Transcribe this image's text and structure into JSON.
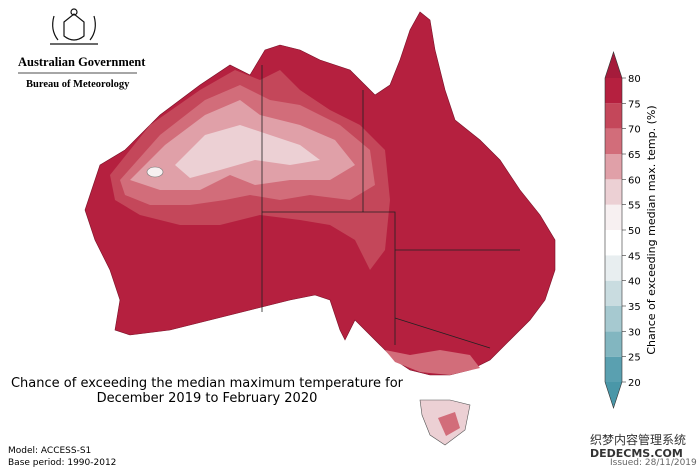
{
  "header": {
    "government": "Australian Government",
    "agency": "Bureau of Meteorology"
  },
  "title": {
    "line1": "Chance of exceeding the median maximum temperature for",
    "line2": "December 2019 to February 2020"
  },
  "legend": {
    "label": "Chance of exceeding median max. temp. (%)",
    "ticks": [
      20,
      25,
      30,
      35,
      40,
      45,
      50,
      55,
      60,
      65,
      70,
      75,
      80
    ],
    "colors": [
      "#5aa0b0",
      "#82b6c0",
      "#a6c9d0",
      "#c9dce0",
      "#e8eef0",
      "#ffffff",
      "#f7f0f1",
      "#ecd0d4",
      "#e0a0a8",
      "#d26d7a",
      "#c4475a",
      "#b5203f"
    ],
    "low_color": "#4a97a8",
    "high_color": "#a51b3b"
  },
  "footer": {
    "model": "Model: ACCESS-S1",
    "base_period": "Base period: 1990-2012",
    "issued": "Issued: 28/11/2019",
    "watermark": "织梦内容管理系统",
    "watermark2": "DEDECMS.COM"
  }
}
